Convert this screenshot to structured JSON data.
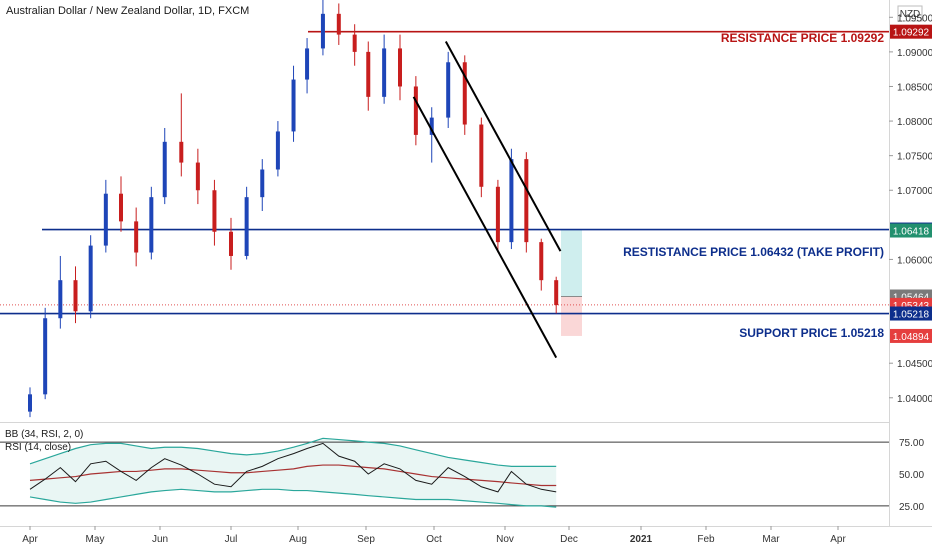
{
  "header": {
    "title": "Australian Dollar / New Zealand Dollar, 1D, FXCM",
    "currency_badge": "NZD"
  },
  "colors": {
    "up": "#1e45b8",
    "down": "#c81e1e",
    "level_blue": "#0d2e8c",
    "level_red": "#b81414",
    "badge_green": "#22906e",
    "badge_gray": "#7a7a7a",
    "badge_red": "#e53e3e",
    "rsi_line": "#1a1a1a",
    "bb_mid": "#a83232",
    "bb_band": "#2aa79b",
    "bb_fill": "#e9f6f4",
    "tp_zone": "#cfeeee",
    "sl_zone": "#fad7d7"
  },
  "annotations": {
    "resistance_top": "RESISTANCE PRICE 1.09292",
    "take_profit": "RESTISTANCE PRICE 1.06432 (TAKE PROFIT)",
    "support": "SUPPORT PRICE 1.05218"
  },
  "price_badges": [
    {
      "label": "1.09292",
      "value": 1.09292,
      "color": "level_red"
    },
    {
      "label": "1.06432",
      "value": 1.06432,
      "color": "level_blue"
    },
    {
      "label": "1.06418",
      "value": 1.06418,
      "color": "badge_green"
    },
    {
      "label": "1.05464",
      "value": 1.05464,
      "color": "badge_gray"
    },
    {
      "label": "1.05343",
      "value": 1.05343,
      "color": "badge_red"
    },
    {
      "label": "1.05218",
      "value": 1.05218,
      "color": "level_blue"
    },
    {
      "label": "1.04894",
      "value": 1.04894,
      "color": "badge_red"
    }
  ],
  "indicator": {
    "bb_label": "BB (34, RSI, 2, 0)",
    "rsi_label": "RSI (14, close)",
    "levels": [
      75,
      25
    ],
    "ticks": [
      "75.00",
      "50.00",
      "25.00"
    ]
  },
  "chart_data": {
    "type": "candlestick",
    "title": "Australian Dollar / New Zealand Dollar, 1D, FXCM",
    "y_ticks": [
      "1.09500",
      "1.09000",
      "1.08500",
      "1.08000",
      "1.07500",
      "1.07000",
      "1.06000",
      "1.04500",
      "1.04000"
    ],
    "ylim": [
      1.0365,
      1.0975
    ],
    "x_ticks": [
      "Apr",
      "May",
      "Jun",
      "Jul",
      "Aug",
      "Sep",
      "Oct",
      "Nov",
      "Dec",
      "2021",
      "Feb",
      "Mar",
      "Apr"
    ],
    "levels": {
      "resistance": 1.09292,
      "take_profit": 1.06432,
      "support": 1.05218
    },
    "channel": {
      "upper": [
        [
          "Oct-06",
          1.0915
        ],
        [
          "Nov-27",
          1.0612
        ]
      ],
      "lower": [
        [
          "Sep-22",
          1.0835
        ],
        [
          "Nov-25",
          1.0458
        ]
      ]
    },
    "trade_box": {
      "entry": 1.05464,
      "take_profit": 1.06432,
      "stop": 1.04894
    },
    "ohlc": [
      {
        "date": "Apr-01",
        "open": 1.038,
        "high": 1.0415,
        "low": 1.0372,
        "close": 1.0405
      },
      {
        "date": "Apr-08",
        "open": 1.0405,
        "high": 1.053,
        "low": 1.0398,
        "close": 1.0515
      },
      {
        "date": "Apr-15",
        "open": 1.0515,
        "high": 1.0605,
        "low": 1.05,
        "close": 1.057
      },
      {
        "date": "Apr-22",
        "open": 1.057,
        "high": 1.059,
        "low": 1.0508,
        "close": 1.0525
      },
      {
        "date": "Apr-29",
        "open": 1.0525,
        "high": 1.0635,
        "low": 1.0515,
        "close": 1.062
      },
      {
        "date": "May-06",
        "open": 1.062,
        "high": 1.0715,
        "low": 1.061,
        "close": 1.0695
      },
      {
        "date": "May-13",
        "open": 1.0695,
        "high": 1.072,
        "low": 1.064,
        "close": 1.0655
      },
      {
        "date": "May-20",
        "open": 1.0655,
        "high": 1.0675,
        "low": 1.059,
        "close": 1.061
      },
      {
        "date": "May-27",
        "open": 1.061,
        "high": 1.0705,
        "low": 1.06,
        "close": 1.069
      },
      {
        "date": "Jun-03",
        "open": 1.069,
        "high": 1.079,
        "low": 1.068,
        "close": 1.077
      },
      {
        "date": "Jun-10",
        "open": 1.077,
        "high": 1.084,
        "low": 1.072,
        "close": 1.074
      },
      {
        "date": "Jun-17",
        "open": 1.074,
        "high": 1.076,
        "low": 1.068,
        "close": 1.07
      },
      {
        "date": "Jun-24",
        "open": 1.07,
        "high": 1.0715,
        "low": 1.062,
        "close": 1.064
      },
      {
        "date": "Jul-01",
        "open": 1.064,
        "high": 1.066,
        "low": 1.0585,
        "close": 1.0605
      },
      {
        "date": "Jul-08",
        "open": 1.0605,
        "high": 1.0705,
        "low": 1.06,
        "close": 1.069
      },
      {
        "date": "Jul-15",
        "open": 1.069,
        "high": 1.0745,
        "low": 1.067,
        "close": 1.073
      },
      {
        "date": "Jul-22",
        "open": 1.073,
        "high": 1.08,
        "low": 1.072,
        "close": 1.0785
      },
      {
        "date": "Jul-29",
        "open": 1.0785,
        "high": 1.088,
        "low": 1.077,
        "close": 1.086
      },
      {
        "date": "Aug-05",
        "open": 1.086,
        "high": 1.092,
        "low": 1.084,
        "close": 1.0905
      },
      {
        "date": "Aug-12",
        "open": 1.0905,
        "high": 1.0975,
        "low": 1.0895,
        "close": 1.0955
      },
      {
        "date": "Aug-19",
        "open": 1.0955,
        "high": 1.097,
        "low": 1.091,
        "close": 1.0925
      },
      {
        "date": "Aug-26",
        "open": 1.0925,
        "high": 1.094,
        "low": 1.088,
        "close": 1.09
      },
      {
        "date": "Sep-02",
        "open": 1.09,
        "high": 1.0915,
        "low": 1.0815,
        "close": 1.0835
      },
      {
        "date": "Sep-09",
        "open": 1.0835,
        "high": 1.0925,
        "low": 1.0825,
        "close": 1.0905
      },
      {
        "date": "Sep-16",
        "open": 1.0905,
        "high": 1.0925,
        "low": 1.083,
        "close": 1.085
      },
      {
        "date": "Sep-23",
        "open": 1.085,
        "high": 1.0865,
        "low": 1.0765,
        "close": 1.078
      },
      {
        "date": "Sep-30",
        "open": 1.078,
        "high": 1.082,
        "low": 1.074,
        "close": 1.0805
      },
      {
        "date": "Oct-07",
        "open": 1.0805,
        "high": 1.09,
        "low": 1.079,
        "close": 1.0885
      },
      {
        "date": "Oct-14",
        "open": 1.0885,
        "high": 1.0895,
        "low": 1.078,
        "close": 1.0795
      },
      {
        "date": "Oct-21",
        "open": 1.0795,
        "high": 1.0805,
        "low": 1.069,
        "close": 1.0705
      },
      {
        "date": "Oct-28",
        "open": 1.0705,
        "high": 1.0715,
        "low": 1.061,
        "close": 1.0625
      },
      {
        "date": "Nov-04",
        "open": 1.0625,
        "high": 1.076,
        "low": 1.0615,
        "close": 1.0745
      },
      {
        "date": "Nov-11",
        "open": 1.0745,
        "high": 1.0755,
        "low": 1.061,
        "close": 1.0625
      },
      {
        "date": "Nov-18",
        "open": 1.0625,
        "high": 1.063,
        "low": 1.0555,
        "close": 1.057
      },
      {
        "date": "Nov-25",
        "open": 1.057,
        "high": 1.0575,
        "low": 1.0522,
        "close": 1.0534
      }
    ],
    "indicator_series": {
      "rsi": [
        38,
        46,
        55,
        44,
        58,
        60,
        52,
        45,
        55,
        62,
        57,
        50,
        42,
        40,
        52,
        56,
        62,
        66,
        70,
        74,
        64,
        60,
        50,
        58,
        54,
        45,
        42,
        55,
        48,
        40,
        36,
        52,
        42,
        38,
        36
      ],
      "bb_mid": [
        45,
        46,
        47,
        48,
        50,
        51,
        52,
        52,
        53,
        54,
        54,
        53,
        52,
        51,
        51,
        52,
        53,
        54,
        56,
        57,
        57,
        56,
        55,
        54,
        52,
        50,
        48,
        47,
        46,
        45,
        44,
        43,
        42,
        41,
        41
      ],
      "bb_upper": [
        58,
        62,
        66,
        70,
        73,
        74,
        74,
        72,
        70,
        71,
        71,
        70,
        68,
        66,
        65,
        66,
        68,
        71,
        74,
        78,
        77,
        76,
        75,
        74,
        72,
        69,
        66,
        63,
        61,
        59,
        57,
        56,
        56,
        56,
        56
      ],
      "bb_lower": [
        32,
        30,
        28,
        27,
        28,
        30,
        32,
        34,
        36,
        37,
        38,
        37,
        36,
        36,
        37,
        38,
        38,
        37,
        37,
        36,
        35,
        34,
        33,
        32,
        31,
        30,
        30,
        30,
        29,
        28,
        27,
        26,
        25,
        25,
        24
      ]
    }
  }
}
